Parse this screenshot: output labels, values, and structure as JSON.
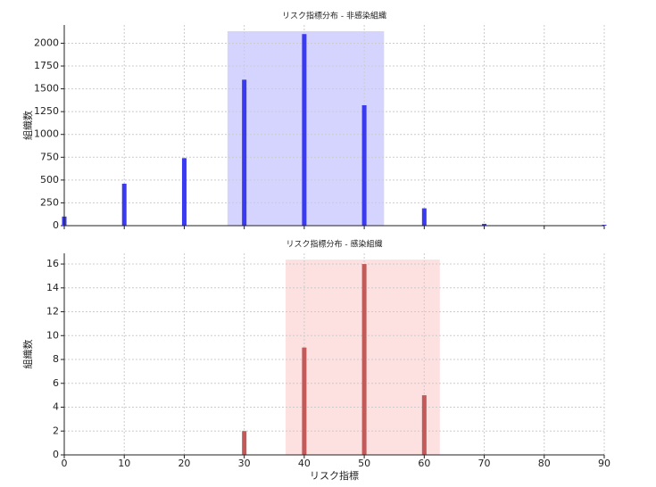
{
  "chart_data": [
    {
      "type": "bar",
      "title": "リスク指標分布 - 非感染組織",
      "y_label": "組織数",
      "x": [
        0,
        10,
        20,
        30,
        40,
        50,
        60,
        70,
        80,
        90
      ],
      "values": [
        100,
        460,
        740,
        1600,
        2100,
        1320,
        190,
        20,
        5,
        10
      ],
      "color": "#3a3aee",
      "span": [
        27.2,
        53.3
      ],
      "span_color": "#d4d4ff",
      "xlim": [
        0,
        90
      ],
      "xticks": [
        0,
        10,
        20,
        30,
        40,
        50,
        60,
        70,
        80,
        90
      ],
      "ylim": [
        0,
        2200
      ],
      "yticks": [
        0,
        250,
        500,
        750,
        1000,
        1250,
        1500,
        1750,
        2000
      ],
      "grid": true
    },
    {
      "type": "bar",
      "title": "リスク指標分布 - 感染組織",
      "y_label": "組織数",
      "x_label": "リスク指標",
      "x": [
        30,
        40,
        50,
        60
      ],
      "values": [
        2,
        9,
        16,
        5
      ],
      "color": "#c25a5a",
      "span": [
        36.9,
        62.6
      ],
      "span_color": "#fde0e0",
      "xlim": [
        0,
        90
      ],
      "xticks": [
        0,
        10,
        20,
        30,
        40,
        50,
        60,
        70,
        80,
        90
      ],
      "ylim": [
        0,
        16.9
      ],
      "yticks": [
        0,
        2,
        4,
        6,
        8,
        10,
        12,
        14,
        16
      ],
      "grid": true
    }
  ]
}
